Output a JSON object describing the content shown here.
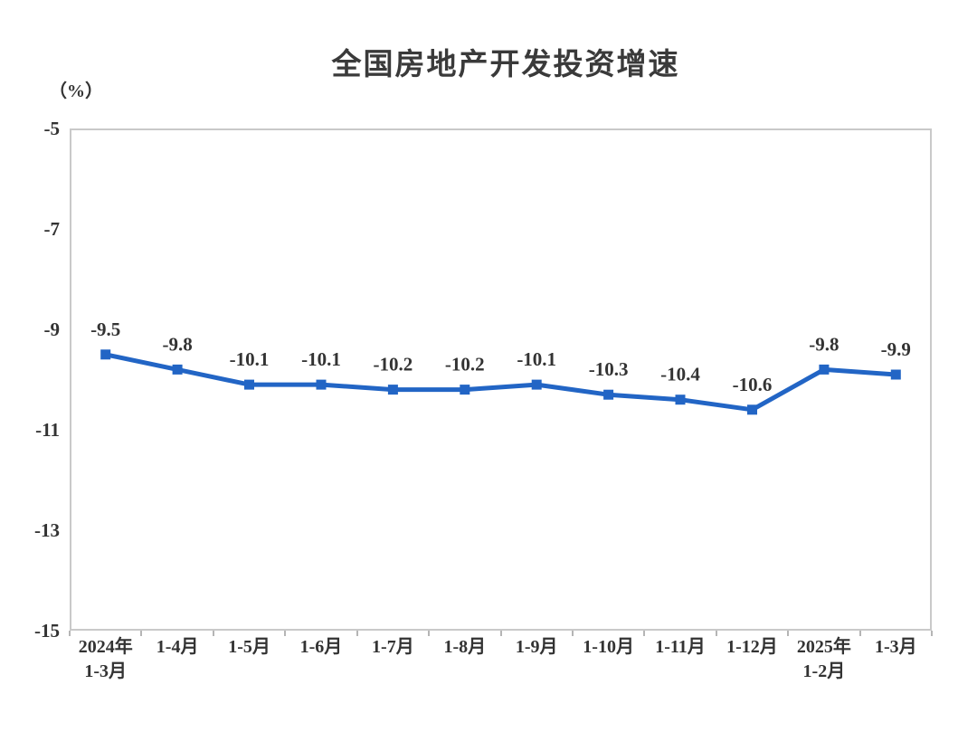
{
  "page": {
    "background": "#ffffff"
  },
  "colors": {
    "line": "#2265c5",
    "marker_fill": "#2265c5",
    "axis_border": "#c9c9c9",
    "tick_mark": "#b5b5b5",
    "text": "#333333"
  },
  "chart_data": {
    "type": "line",
    "title": "全国房地产开发投资增速",
    "ylabel": "（%）",
    "xlabel": "",
    "categories": [
      "2024年\n1-3月",
      "1-4月",
      "1-5月",
      "1-6月",
      "1-7月",
      "1-8月",
      "1-9月",
      "1-10月",
      "1-11月",
      "1-12月",
      "2025年\n1-2月",
      "1-3月"
    ],
    "values": [
      -9.5,
      -9.8,
      -10.1,
      -10.1,
      -10.2,
      -10.2,
      -10.1,
      -10.3,
      -10.4,
      -10.6,
      -9.8,
      -9.9
    ],
    "data_labels": [
      "-9.5",
      "-9.8",
      "-10.1",
      "-10.1",
      "-10.2",
      "-10.2",
      "-10.1",
      "-10.3",
      "-10.4",
      "-10.6",
      "-9.8",
      "-9.9"
    ],
    "ylim": [
      -15,
      -5
    ],
    "yticks": [
      -5,
      -7,
      -9,
      -11,
      -13,
      -15
    ],
    "grid": false,
    "legend_position": "none",
    "marker": "square"
  }
}
